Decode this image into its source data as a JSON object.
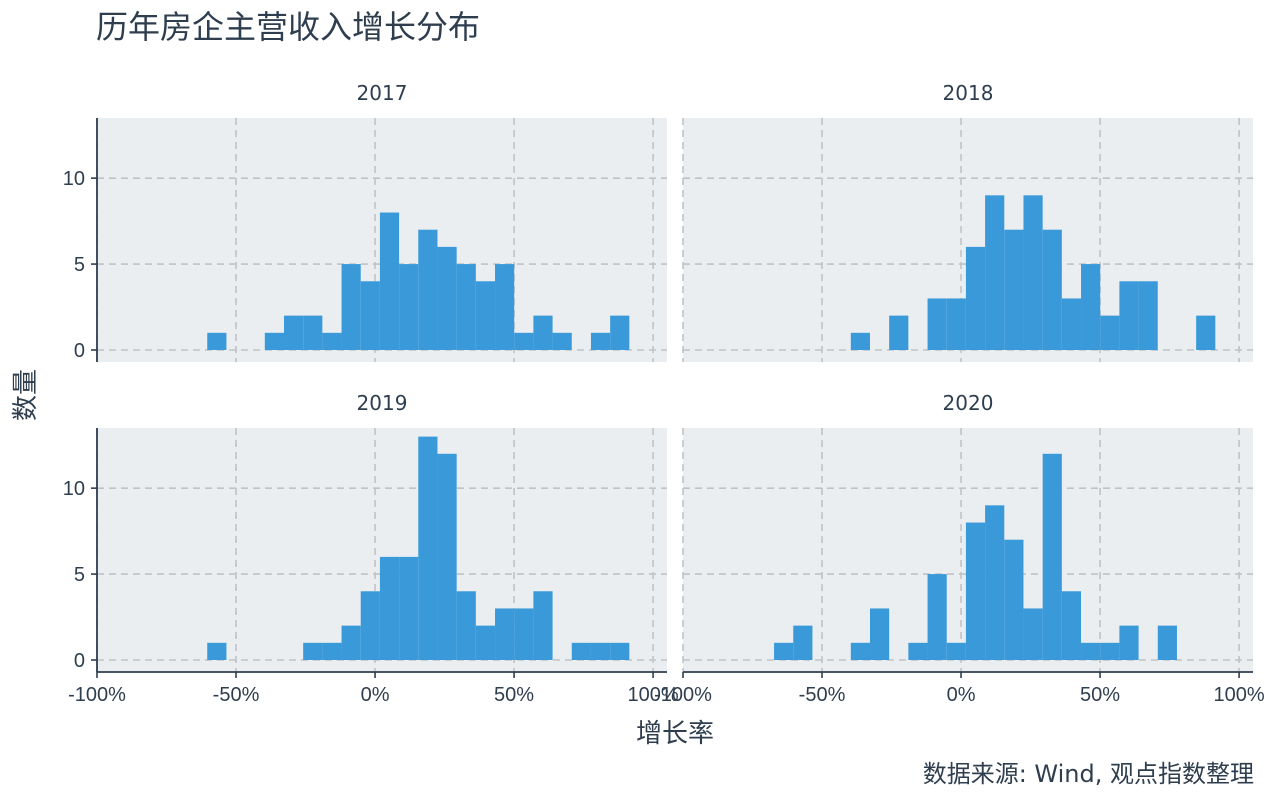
{
  "chart_data": {
    "type": "histogram",
    "title": "历年房企主营收入增长分布",
    "xlabel": "增长率",
    "ylabel": "数量",
    "caption": "数据来源: Wind, 观点指数整理",
    "xlim": [
      -1.0,
      1.05
    ],
    "ylim": [
      0,
      13.5
    ],
    "x_ticks": [
      -1.0,
      -0.5,
      0,
      0.5,
      1.0
    ],
    "x_tick_labels": [
      "-100%",
      "-50%",
      "0%",
      "50%",
      "100%"
    ],
    "y_ticks": [
      0,
      5,
      10
    ],
    "y_tick_labels": [
      "0",
      "5",
      "10"
    ],
    "grid": true,
    "bar_color": "#3a9ad9",
    "bin_width": 0.069,
    "panels": [
      {
        "name": "2017",
        "bins": [
          {
            "x": -0.569,
            "count": 1
          },
          {
            "x": -0.362,
            "count": 1
          },
          {
            "x": -0.293,
            "count": 2
          },
          {
            "x": -0.224,
            "count": 2
          },
          {
            "x": -0.155,
            "count": 1
          },
          {
            "x": -0.086,
            "count": 5
          },
          {
            "x": -0.017,
            "count": 4
          },
          {
            "x": 0.052,
            "count": 8
          },
          {
            "x": 0.121,
            "count": 5
          },
          {
            "x": 0.19,
            "count": 7
          },
          {
            "x": 0.259,
            "count": 6
          },
          {
            "x": 0.328,
            "count": 5
          },
          {
            "x": 0.397,
            "count": 4
          },
          {
            "x": 0.466,
            "count": 5
          },
          {
            "x": 0.535,
            "count": 1
          },
          {
            "x": 0.604,
            "count": 2
          },
          {
            "x": 0.673,
            "count": 1
          },
          {
            "x": 0.811,
            "count": 1
          },
          {
            "x": 0.88,
            "count": 2
          }
        ]
      },
      {
        "name": "2018",
        "bins": [
          {
            "x": -0.362,
            "count": 1
          },
          {
            "x": -0.224,
            "count": 2
          },
          {
            "x": -0.086,
            "count": 3
          },
          {
            "x": -0.017,
            "count": 3
          },
          {
            "x": 0.052,
            "count": 6
          },
          {
            "x": 0.121,
            "count": 9
          },
          {
            "x": 0.19,
            "count": 7
          },
          {
            "x": 0.259,
            "count": 9
          },
          {
            "x": 0.328,
            "count": 7
          },
          {
            "x": 0.397,
            "count": 3
          },
          {
            "x": 0.466,
            "count": 5
          },
          {
            "x": 0.535,
            "count": 2
          },
          {
            "x": 0.604,
            "count": 4
          },
          {
            "x": 0.673,
            "count": 4
          },
          {
            "x": 0.88,
            "count": 2
          }
        ]
      },
      {
        "name": "2019",
        "bins": [
          {
            "x": -0.569,
            "count": 1
          },
          {
            "x": -0.224,
            "count": 1
          },
          {
            "x": -0.155,
            "count": 1
          },
          {
            "x": -0.086,
            "count": 2
          },
          {
            "x": -0.017,
            "count": 4
          },
          {
            "x": 0.052,
            "count": 6
          },
          {
            "x": 0.121,
            "count": 6
          },
          {
            "x": 0.19,
            "count": 13
          },
          {
            "x": 0.259,
            "count": 12
          },
          {
            "x": 0.328,
            "count": 4
          },
          {
            "x": 0.397,
            "count": 2
          },
          {
            "x": 0.466,
            "count": 3
          },
          {
            "x": 0.535,
            "count": 3
          },
          {
            "x": 0.604,
            "count": 4
          },
          {
            "x": 0.742,
            "count": 1
          },
          {
            "x": 0.811,
            "count": 1
          },
          {
            "x": 0.88,
            "count": 1
          }
        ]
      },
      {
        "name": "2020",
        "bins": [
          {
            "x": -0.638,
            "count": 1
          },
          {
            "x": -0.569,
            "count": 2
          },
          {
            "x": -0.362,
            "count": 1
          },
          {
            "x": -0.293,
            "count": 3
          },
          {
            "x": -0.155,
            "count": 1
          },
          {
            "x": -0.086,
            "count": 5
          },
          {
            "x": -0.017,
            "count": 1
          },
          {
            "x": 0.052,
            "count": 8
          },
          {
            "x": 0.121,
            "count": 9
          },
          {
            "x": 0.19,
            "count": 7
          },
          {
            "x": 0.259,
            "count": 3
          },
          {
            "x": 0.328,
            "count": 12
          },
          {
            "x": 0.397,
            "count": 4
          },
          {
            "x": 0.466,
            "count": 1
          },
          {
            "x": 0.535,
            "count": 1
          },
          {
            "x": 0.604,
            "count": 2
          },
          {
            "x": 0.742,
            "count": 2
          }
        ]
      }
    ]
  }
}
